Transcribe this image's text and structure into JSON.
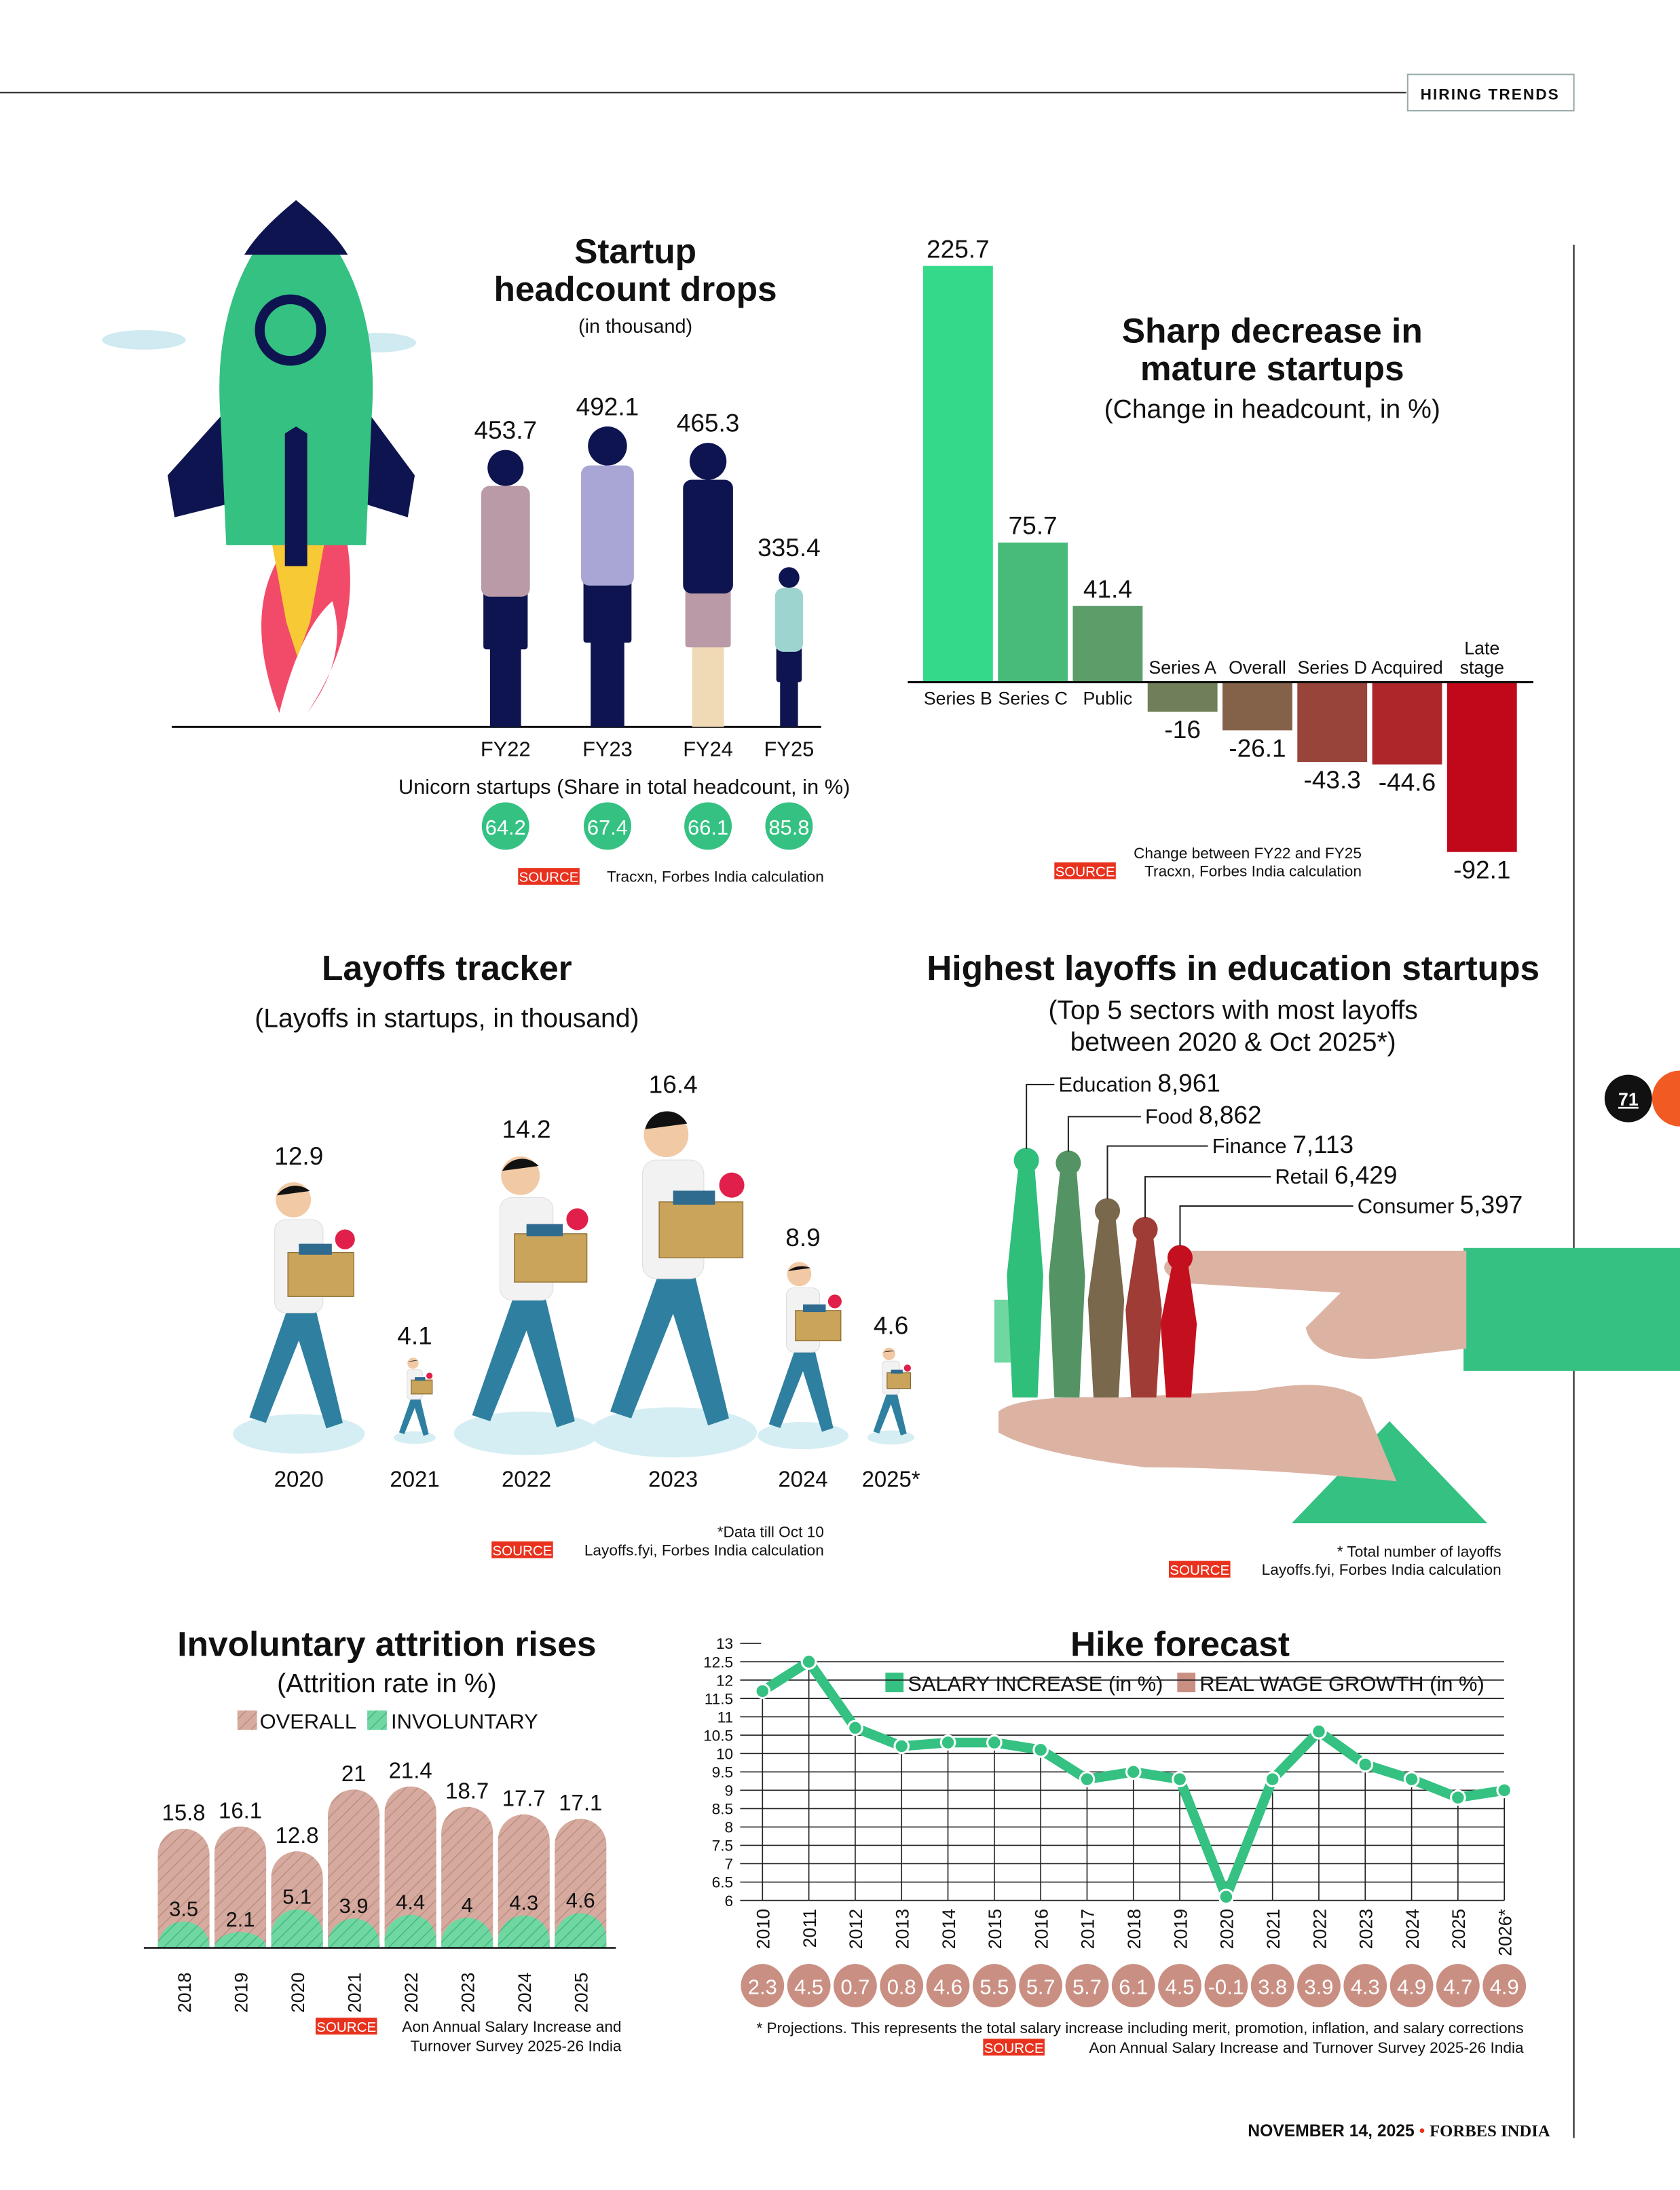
{
  "header": {
    "section_tag": "HIRING TRENDS"
  },
  "page": {
    "number": "71",
    "footer_date": "NOVEMBER 14, 2025",
    "footer_sep": "•",
    "footer_pub": "FORBES INDIA"
  },
  "colors": {
    "green": "#34c182",
    "red": "#c0081a",
    "rose": "#c98f82",
    "navy": "#0e1450",
    "source_red": "#e8321e"
  },
  "chart_data": [
    {
      "type": "bar",
      "title_lines": [
        "Startup",
        "headcount drops"
      ],
      "subtitle": "(in thousand)",
      "categories": [
        "FY22",
        "FY23",
        "FY24",
        "FY25"
      ],
      "values": [
        453.7,
        492.1,
        465.3,
        335.4
      ],
      "value_labels": [
        "453.7",
        "492.1",
        "465.3",
        "335.4"
      ],
      "unicorn_label": "Unicorn startups (Share in total headcount, in %)",
      "unicorn_share": [
        "64.2",
        "67.4",
        "66.1",
        "85.8"
      ],
      "source_label": "SOURCE",
      "source": "Tracxn, Forbes India calculation"
    },
    {
      "type": "bar",
      "title_lines": [
        "Sharp decrease in",
        "mature startups"
      ],
      "subtitle": "(Change in headcount, in %)",
      "categories": [
        "Series B",
        "Series C",
        "Public",
        "Series A",
        "Overall",
        "Series D",
        "Acquired",
        "Late stage"
      ],
      "values": [
        225.7,
        75.7,
        41.4,
        -16,
        -26.1,
        -43.3,
        -44.6,
        -92.1
      ],
      "value_labels": [
        "225.7",
        "75.7",
        "41.4",
        "-16",
        "-26.1",
        "-43.3",
        "-44.6",
        "-92.1"
      ],
      "note": "Change between FY22 and FY25",
      "source_label": "SOURCE",
      "source": "Tracxn, Forbes India calculation"
    },
    {
      "type": "bar",
      "title": "Layoffs tracker",
      "subtitle": "(Layoffs in startups, in thousand)",
      "categories": [
        "2020",
        "2021",
        "2022",
        "2023",
        "2024",
        "2025*"
      ],
      "values": [
        12.9,
        4.1,
        14.2,
        16.4,
        8.9,
        4.6
      ],
      "value_labels": [
        "12.9",
        "4.1",
        "14.2",
        "16.4",
        "8.9",
        "4.6"
      ],
      "note": "*Data till Oct 10",
      "source_label": "SOURCE",
      "source": "Layoffs.fyi, Forbes India calculation"
    },
    {
      "type": "bar",
      "title": "Highest layoffs in education startups",
      "subtitle_lines": [
        "(Top 5 sectors with most layoffs",
        "between 2020 & Oct 2025*)"
      ],
      "categories": [
        "Education",
        "Food",
        "Finance",
        "Retail",
        "Consumer"
      ],
      "values": [
        8961,
        8862,
        7113,
        6429,
        5397
      ],
      "value_labels": [
        "8,961",
        "8,862",
        "7,113",
        "6,429",
        "5,397"
      ],
      "note": "* Total number of layoffs",
      "source_label": "SOURCE",
      "source": "Layoffs.fyi, Forbes India calculation"
    },
    {
      "type": "bar",
      "title": "Involuntary attrition rises",
      "subtitle": "(Attrition rate in %)",
      "categories": [
        "2018",
        "2019",
        "2020",
        "2021",
        "2022",
        "2023",
        "2024",
        "2025"
      ],
      "series": [
        {
          "name": "OVERALL",
          "values": [
            15.8,
            16.1,
            12.8,
            21,
            21.4,
            18.7,
            17.7,
            17.1
          ],
          "labels": [
            "15.8",
            "16.1",
            "12.8",
            "21",
            "21.4",
            "18.7",
            "17.7",
            "17.1"
          ]
        },
        {
          "name": "INVOLUNTARY",
          "values": [
            3.5,
            2.1,
            5.1,
            3.9,
            4.4,
            4,
            4.3,
            4.6
          ],
          "labels": [
            "3.5",
            "2.1",
            "5.1",
            "3.9",
            "4.4",
            "4",
            "4.3",
            "4.6"
          ]
        }
      ],
      "source_label": "SOURCE",
      "source_lines": [
        "Aon Annual Salary Increase and",
        "Turnover Survey 2025-26 India"
      ]
    },
    {
      "type": "line",
      "title": "Hike forecast",
      "x": [
        "2010",
        "2011",
        "2012",
        "2013",
        "2014",
        "2015",
        "2016",
        "2017",
        "2018",
        "2019",
        "2020",
        "2021",
        "2022",
        "2023",
        "2024",
        "2025",
        "2026*"
      ],
      "ylim": [
        6,
        13
      ],
      "yticks": [
        "13",
        "12.5",
        "12",
        "11.5",
        "11",
        "10.5",
        "10",
        "9.5",
        "9",
        "8.5",
        "8",
        "7.5",
        "7",
        "6.5",
        "6"
      ],
      "grid": true,
      "legend_position": "top",
      "series": [
        {
          "name": "SALARY INCREASE (in %)",
          "values": [
            11.7,
            12.5,
            10.7,
            10.2,
            10.3,
            10.3,
            10.1,
            9.3,
            9.5,
            9.3,
            6.1,
            9.3,
            10.6,
            9.7,
            9.3,
            8.8,
            9.0
          ]
        },
        {
          "name": "REAL WAGE GROWTH (in %)",
          "values": [
            2.3,
            4.5,
            0.7,
            0.8,
            4.6,
            5.5,
            5.7,
            5.7,
            6.1,
            4.5,
            -0.1,
            3.8,
            3.9,
            4.3,
            4.9,
            4.7,
            4.9
          ],
          "labels": [
            "2.3",
            "4.5",
            "0.7",
            "0.8",
            "4.6",
            "5.5",
            "5.7",
            "5.7",
            "6.1",
            "4.5",
            "-0.1",
            "3.8",
            "3.9",
            "4.3",
            "4.9",
            "4.7",
            "4.9"
          ]
        }
      ],
      "note": "* Projections. This represents the total salary increase including merit, promotion, inflation, and salary corrections",
      "source_label": "SOURCE",
      "source": "Aon Annual Salary Increase and Turnover Survey 2025-26 India"
    }
  ]
}
